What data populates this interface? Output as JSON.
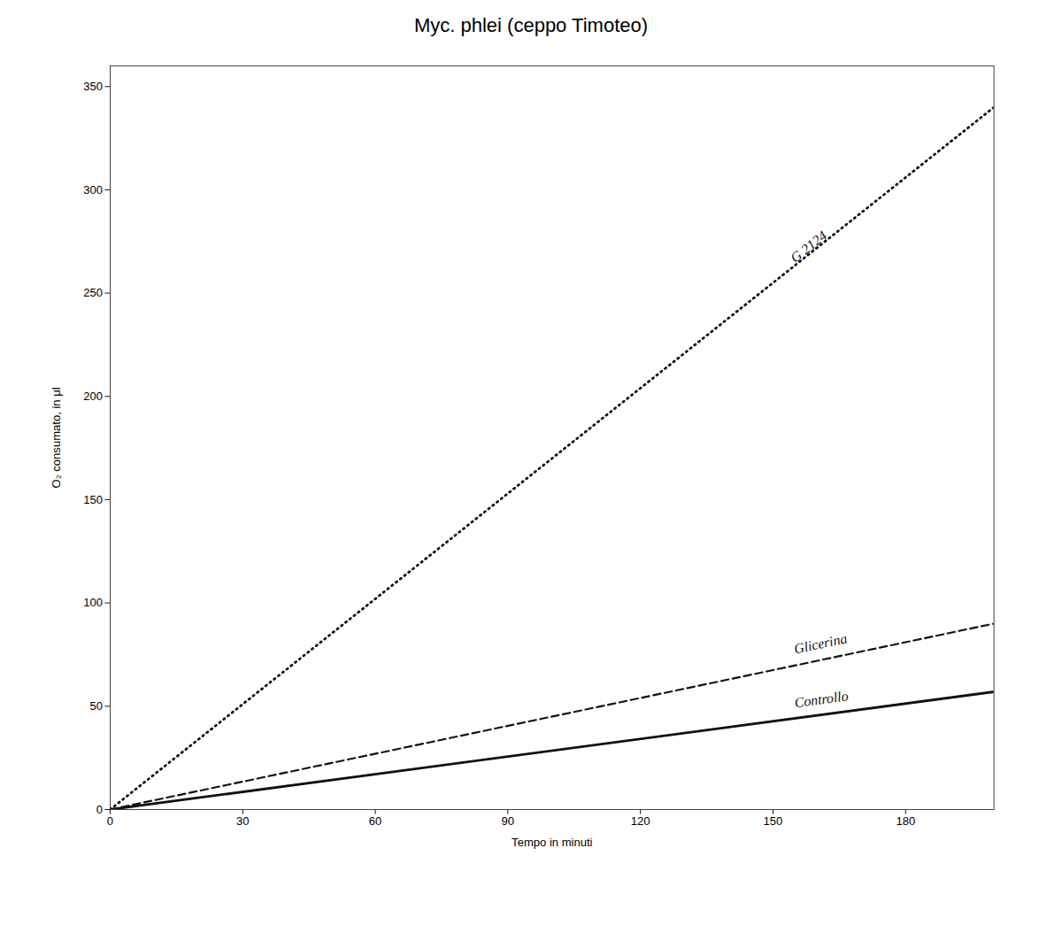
{
  "chart_data": {
    "type": "line",
    "title": "Myc. phlei (ceppo Timoteo)",
    "x_label": "Tempo in minuti",
    "y_label": "O₂ consumato, in μl",
    "x": [
      0,
      200
    ],
    "series": [
      {
        "name": "G 2124",
        "color": "#111111",
        "line_style": "dotted",
        "values": [
          0,
          340
        ]
      },
      {
        "name": "Glicerina",
        "color": "#111111",
        "line_style": "dashed",
        "values": [
          0,
          90
        ]
      },
      {
        "name": "Controllo",
        "color": "#111111",
        "line_style": "solid",
        "values": [
          0,
          57
        ]
      }
    ],
    "annotations": [
      {
        "text": "G 2124",
        "x": 155,
        "y": 262
      },
      {
        "text": "Glicerina",
        "x": 155,
        "y": 73
      },
      {
        "text": "Controllo",
        "x": 155,
        "y": 47
      }
    ],
    "xlim": [
      0,
      200
    ],
    "ylim": [
      0,
      360
    ],
    "xticks": [
      0,
      30,
      60,
      90,
      120,
      150,
      180
    ],
    "yticks": [
      0,
      50,
      100,
      150,
      200,
      250,
      300,
      350
    ],
    "grid": false
  }
}
